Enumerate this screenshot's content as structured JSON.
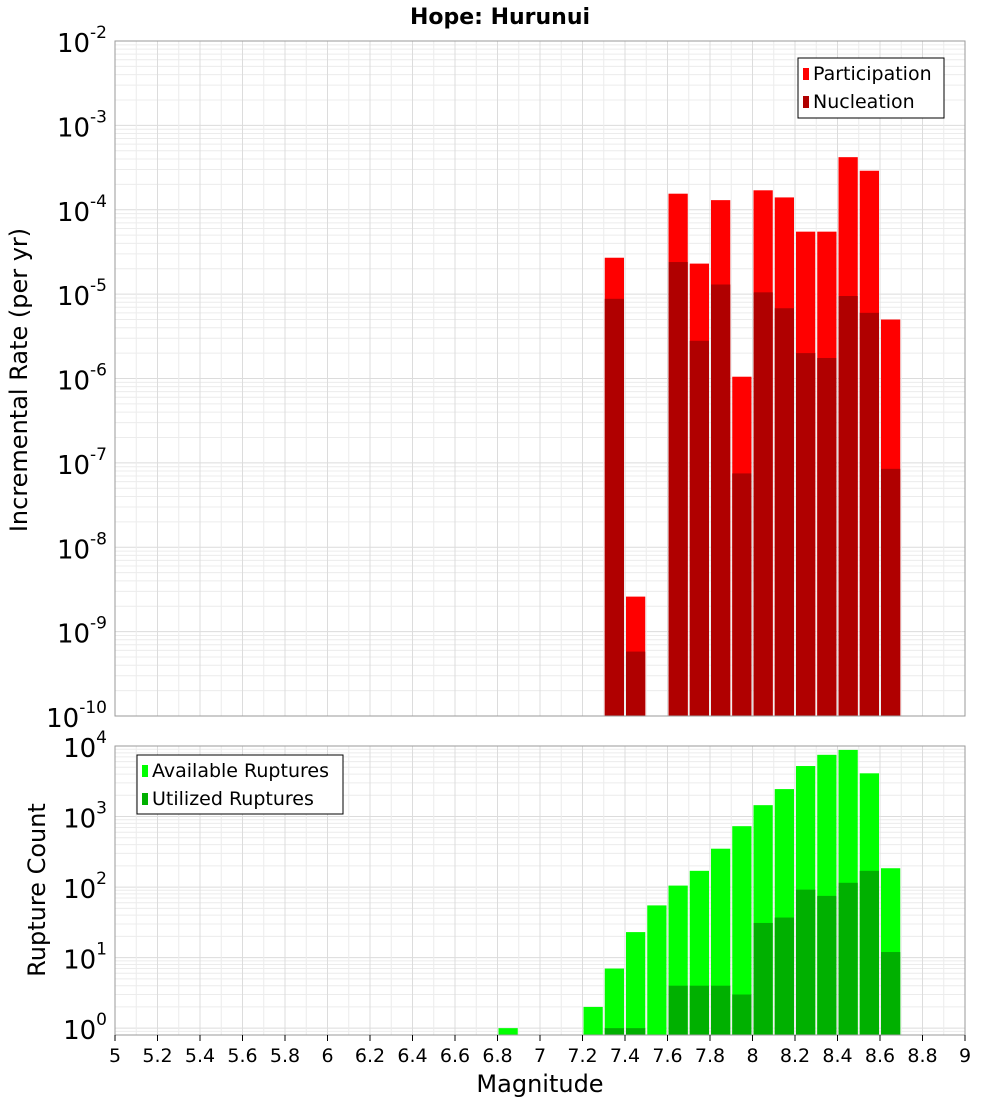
{
  "title": "Hope: Hurunui",
  "chart_data": [
    {
      "type": "bar",
      "xlabel": "Magnitude",
      "ylabel": "Incremental Rate (per yr)",
      "ylog": true,
      "xlim": [
        5,
        9
      ],
      "ylim": [
        1e-10,
        0.01
      ],
      "legend_position": "top-right",
      "grid": true,
      "series": [
        {
          "name": "Participation",
          "color": "#ff0000",
          "points": [
            {
              "x": 7.35,
              "y": 2.7e-05
            },
            {
              "x": 7.45,
              "y": 2.6e-09
            },
            {
              "x": 7.65,
              "y": 0.000155
            },
            {
              "x": 7.75,
              "y": 2.3e-05
            },
            {
              "x": 7.85,
              "y": 0.00013
            },
            {
              "x": 7.95,
              "y": 1.05e-06
            },
            {
              "x": 8.05,
              "y": 0.00017
            },
            {
              "x": 8.15,
              "y": 0.00014
            },
            {
              "x": 8.25,
              "y": 5.5e-05
            },
            {
              "x": 8.35,
              "y": 5.5e-05
            },
            {
              "x": 8.45,
              "y": 0.00042
            },
            {
              "x": 8.55,
              "y": 0.00029
            },
            {
              "x": 8.65,
              "y": 5e-06
            }
          ]
        },
        {
          "name": "Nucleation",
          "color": "#b00000",
          "points": [
            {
              "x": 7.35,
              "y": 8.8e-06
            },
            {
              "x": 7.45,
              "y": 5.8e-10
            },
            {
              "x": 7.65,
              "y": 2.4e-05
            },
            {
              "x": 7.75,
              "y": 2.8e-06
            },
            {
              "x": 7.85,
              "y": 1.3e-05
            },
            {
              "x": 7.95,
              "y": 7.5e-08
            },
            {
              "x": 8.05,
              "y": 1.05e-05
            },
            {
              "x": 8.15,
              "y": 6.8e-06
            },
            {
              "x": 8.25,
              "y": 2e-06
            },
            {
              "x": 8.35,
              "y": 1.75e-06
            },
            {
              "x": 8.45,
              "y": 9.5e-06
            },
            {
              "x": 8.55,
              "y": 6e-06
            },
            {
              "x": 8.65,
              "y": 8.5e-08
            }
          ]
        }
      ]
    },
    {
      "type": "bar",
      "xlabel": "Magnitude",
      "ylabel": "Rupture Count",
      "ylog": true,
      "xlim": [
        5,
        9
      ],
      "ylim": [
        0.8,
        10000
      ],
      "legend_position": "top-left",
      "grid": true,
      "series": [
        {
          "name": "Available Ruptures",
          "color": "#00ff00",
          "points": [
            {
              "x": 6.85,
              "y": 1
            },
            {
              "x": 7.25,
              "y": 2
            },
            {
              "x": 7.35,
              "y": 7
            },
            {
              "x": 7.45,
              "y": 23
            },
            {
              "x": 7.55,
              "y": 55
            },
            {
              "x": 7.65,
              "y": 105
            },
            {
              "x": 7.75,
              "y": 170
            },
            {
              "x": 7.85,
              "y": 350
            },
            {
              "x": 7.95,
              "y": 730
            },
            {
              "x": 8.05,
              "y": 1450
            },
            {
              "x": 8.15,
              "y": 2450
            },
            {
              "x": 8.25,
              "y": 5200
            },
            {
              "x": 8.35,
              "y": 7500
            },
            {
              "x": 8.45,
              "y": 8800
            },
            {
              "x": 8.55,
              "y": 4100
            },
            {
              "x": 8.65,
              "y": 185
            }
          ]
        },
        {
          "name": "Utilized Ruptures",
          "color": "#00b000",
          "points": [
            {
              "x": 7.35,
              "y": 1
            },
            {
              "x": 7.45,
              "y": 1
            },
            {
              "x": 7.65,
              "y": 4
            },
            {
              "x": 7.75,
              "y": 4
            },
            {
              "x": 7.85,
              "y": 4
            },
            {
              "x": 7.95,
              "y": 3
            },
            {
              "x": 8.05,
              "y": 31
            },
            {
              "x": 8.15,
              "y": 37
            },
            {
              "x": 8.25,
              "y": 92
            },
            {
              "x": 8.35,
              "y": 75
            },
            {
              "x": 8.45,
              "y": 115
            },
            {
              "x": 8.55,
              "y": 170
            },
            {
              "x": 8.65,
              "y": 12
            }
          ]
        }
      ]
    }
  ],
  "x_ticks": [
    "5",
    "5.2",
    "5.4",
    "5.6",
    "5.8",
    "6",
    "6.2",
    "6.4",
    "6.6",
    "6.8",
    "7",
    "7.2",
    "7.4",
    "7.6",
    "7.8",
    "8",
    "8.2",
    "8.4",
    "8.6",
    "8.8",
    "9"
  ],
  "top_y_ticks": [
    {
      "base": "10",
      "exp": "-2"
    },
    {
      "base": "10",
      "exp": "-3"
    },
    {
      "base": "10",
      "exp": "-4"
    },
    {
      "base": "10",
      "exp": "-5"
    },
    {
      "base": "10",
      "exp": "-6"
    },
    {
      "base": "10",
      "exp": "-7"
    },
    {
      "base": "10",
      "exp": "-8"
    },
    {
      "base": "10",
      "exp": "-9"
    },
    {
      "base": "10",
      "exp": "-10"
    }
  ],
  "bottom_y_ticks": [
    {
      "base": "10",
      "exp": "4"
    },
    {
      "base": "10",
      "exp": "3"
    },
    {
      "base": "10",
      "exp": "2"
    },
    {
      "base": "10",
      "exp": "1"
    },
    {
      "base": "10",
      "exp": "0"
    }
  ]
}
